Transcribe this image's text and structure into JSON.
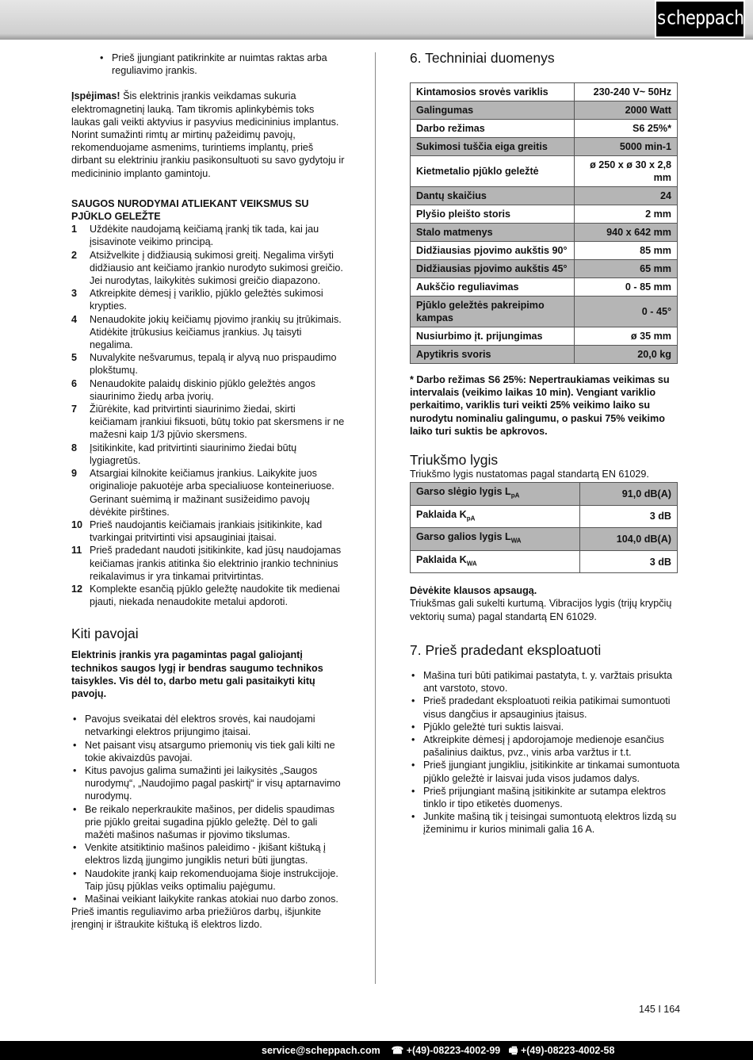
{
  "header": {
    "logo": "scheppach"
  },
  "left": {
    "top_bullet": "Prieš įjungiant patikrinkite ar nuimtas raktas arba reguliavimo įrankis.",
    "warning_label": "Įspėjimas!",
    "warning_text": " Šis elektrinis įrankis veikdamas sukuria elektromagnetinį lauką. Tam tikromis aplinkybėmis toks laukas gali veikti aktyvius ir pasyvius medicininius implantus. Norint sumažinti rimtų ar mirtinų pažeidimų pavojų, rekomenduojame asmenims, turintiems implantų, prieš dirbant su elektriniu įrankiu pasikonsul­tuoti su savo gydytoju ir medicininio implanto gamintoju.",
    "safety_heading": "SAUGOS NURODYMAI ATLIEKANT VEIKSMUS SU PJŪKLO GELEŽTE",
    "safety_items": [
      {
        "n": "1",
        "t": "Uždėkite naudojamą keičiamą įrankį tik tada, kai jau įsisavinote veikimo principą."
      },
      {
        "n": "2",
        "t": "Atsižvelkite į didžiausią sukimosi greitį. Negalima viršyti didžiausio ant keičiamo įrankio nurodyto sukimosi greičio. Jei nurodytas, laikykitės sukimosi greičio diapazono."
      },
      {
        "n": "3",
        "t": "Atkreipkite dėmesį į variklio, pjūklo geležtės suki­mosi krypties."
      },
      {
        "n": "4",
        "t": "Nenaudokite jokių keičiamų pjovimo įrankių su įtrūkimais. Atidėkite įtrūkusius keičiamus įrankius. Jų taisyti negalima."
      },
      {
        "n": "5",
        "t": "Nuvalykite nešvarumus, tepalą ir alyvą nuo pris­paudimo plokštumų."
      },
      {
        "n": "6",
        "t": "Nenaudokite palaidų diskinio pjūklo geležtės angos siaurinimo žiedų arba įvorių."
      },
      {
        "n": "7",
        "t": "Žiūrėkite, kad pritvirtinti siaurinimo žiedai, skirti keičiamam įrankiui fiksuoti, būtų tokio pat skers­mens ir ne mažesni kaip 1/3 pjūvio skersmens."
      },
      {
        "n": "8",
        "t": "Įsitikinkite, kad pritvirtinti siaurinimo žiedai būtų lygiagretūs."
      },
      {
        "n": "9",
        "t": "Atsargiai kilnokite keičiamus įrankius. Laikyki­te juos originalioje pakuotėje arba specialiuose konteineriuose. Gerinant suėmimą ir mažinant susižeidimo pavojų dėvėkite pirštines."
      },
      {
        "n": "10",
        "t": "Prieš naudojantis keičiamais įrankiais įsitikinkite, kad tvarkingai pritvirtinti visi apsauginiai įtaisai."
      },
      {
        "n": "11",
        "t": "Prieš pradedant naudoti įsitikinkite, kad jūsų naudojamas keičiamas įrankis atitinka šio elektri­nio įrankio techninius reikalavimus ir yra tinkamai pritvirtintas."
      },
      {
        "n": "12",
        "t": "Komplekte esančią pjūklo geležtę naudokite tik medienai pjauti, niekada nenaudokite metalui apdoroti."
      }
    ],
    "other_heading": "Kiti pavojai",
    "other_bold": "Elektrinis įrankis yra pagamintas pagal galiojantį technikos saugos lygį ir bendras saugumo techni­kos taisykles. Vis dėl to, darbo metu gali pasitaikyti kitų pavojų.",
    "other_bullets": [
      "Pavojus sveikatai dėl elektros srovės, kai naudojami netvarkingi elektros prijungimo įtaisai.",
      "Net paisant visų atsargumo priemonių vis tiek gali kilti ne tokie akivaizdūs pavojai.",
      "Kitus pavojus galima sumažinti jei laikysitės „Saugos nurodymų“, „Naudojimo pagal paskirtį“ ir visų aptarna­vimo nurodymų.",
      "Be reikalo neperkraukite mašinos, per didelis spaudi­mas prie pjūklo greitai sugadina pjūklo geležtę. Dėl to gali mažėti mašinos našumas ir pjovimo tikslumas.",
      "Venkite atsitiktinio mašinos paleidimo - įkišant kištuką į elektros lizdą įjungimo jungiklis neturi būti įjungtas.",
      "Naudokite įrankį kaip rekomenduojama šioje instrukci­joje. Taip jūsų pjūklas veiks optimaliu pajėgumu.",
      "Mašinai veikiant laikykite rankas atokiai nuo darbo zonos."
    ],
    "closing": "Prieš imantis reguliavimo arba priežiūros darbų, išjunkite įrenginį ir ištraukite kištuką iš elektros lizdo."
  },
  "right": {
    "tech_heading": "6. Techniniai duomenys",
    "tech_rows": [
      {
        "k": "Kintamosios srovės variklis",
        "v": "230-240 V~ 50Hz"
      },
      {
        "k": "Galingumas",
        "v": "2000 Watt"
      },
      {
        "k": "Darbo režimas",
        "v": "S6 25%*"
      },
      {
        "k": "Sukimosi tuščia eiga greitis",
        "v": "5000 min-1"
      },
      {
        "k": "Kietmetalio pjūklo geležtė",
        "v": "ø 250 x ø 30 x 2,8 mm"
      },
      {
        "k": "Dantų skaičius",
        "v": "24"
      },
      {
        "k": "Plyšio pleišto storis",
        "v": "2 mm"
      },
      {
        "k": "Stalo matmenys",
        "v": "940 x 642 mm"
      },
      {
        "k": "Didžiausias pjovimo aukštis 90°",
        "v": "85 mm"
      },
      {
        "k": "Didžiausias pjovimo aukštis 45°",
        "v": "65 mm"
      },
      {
        "k": "Aukščio reguliavimas",
        "v": "0 - 85 mm"
      },
      {
        "k": "Pjūklo geležtės pakreipimo kampas",
        "v": "0 - 45°"
      },
      {
        "k": "Nusiurbimo įt. prijungimas",
        "v": "ø 35 mm"
      },
      {
        "k": "Apytikris svoris",
        "v": "20,0 kg"
      }
    ],
    "footnote": "* Darbo režimas S6 25%: Nepertraukiamas veikimas su intervalais (veikimo laikas 10 min). Vengiant variklio perkaitimo, variklis turi veikti 25% veikimo laiko su nurodytu nominaliu galingumu, o paskui 75% veikimo laiko turi suktis be apkrovos.",
    "noise_heading": "Triukšmo lygis",
    "noise_intro": "Triukšmo lygis nustatomas pagal standartą EN 61029.",
    "noise_rows": [
      {
        "k": "Garso slėgio lygis L",
        "sub": "pA",
        "v": "91,0 dB(A)"
      },
      {
        "k": "Paklaida K",
        "sub": "pA",
        "v": "3 dB"
      },
      {
        "k": "Garso galios lygis L",
        "sub": "WA",
        "v": "104,0 dB(A)"
      },
      {
        "k": "Paklaida K",
        "sub": "WA",
        "v": "3 dB"
      }
    ],
    "hearing_bold": "Dėvėkite klausos apsaugą.",
    "hearing_text": "Triukšmas gali sukelti kurtumą. Vibracijos lygis (trijų krypčių vektorių suma) pagal standartą EN 61029.",
    "start_heading": "7. Prieš pradedant eksploatuoti",
    "start_bullets": [
      "Mašina turi būti patikimai pastatyta, t. y. varžtais pri­sukta ant varstoto, stovo.",
      "Prieš pradedant eksploatuoti reikia patikimai sumontu­oti visus dangčius ir apsauginius įtaisus.",
      "Pjūklo geležtė turi suktis laisvai.",
      "Atkreipkite dėmesį į apdorojamoje medienoje esančius pašalinius daiktus, pvz., vinis arba varžtus ir t.t.",
      "Prieš įjungiant jungikliu, įsitikinkite ar tinkamai su­montuota pjūklo geležtė ir laisvai juda visos judamos dalys.",
      "Prieš prijungiant mašiną įsitikinkite ar sutampa elek­tros tinklo ir tipo etiketės duomenys.",
      "Junkite mašiną tik į teisingai sumontuotą elektros lizdą su įžeminimu ir kurios minimali galia 16 A."
    ]
  },
  "page_number": "145 I 164",
  "footer": {
    "email": "service@scheppach.com",
    "phone_icon": "☎",
    "phone": "+(49)-08223-4002-99",
    "fax_icon": "🖷",
    "fax": "+(49)-08223-4002-58"
  }
}
